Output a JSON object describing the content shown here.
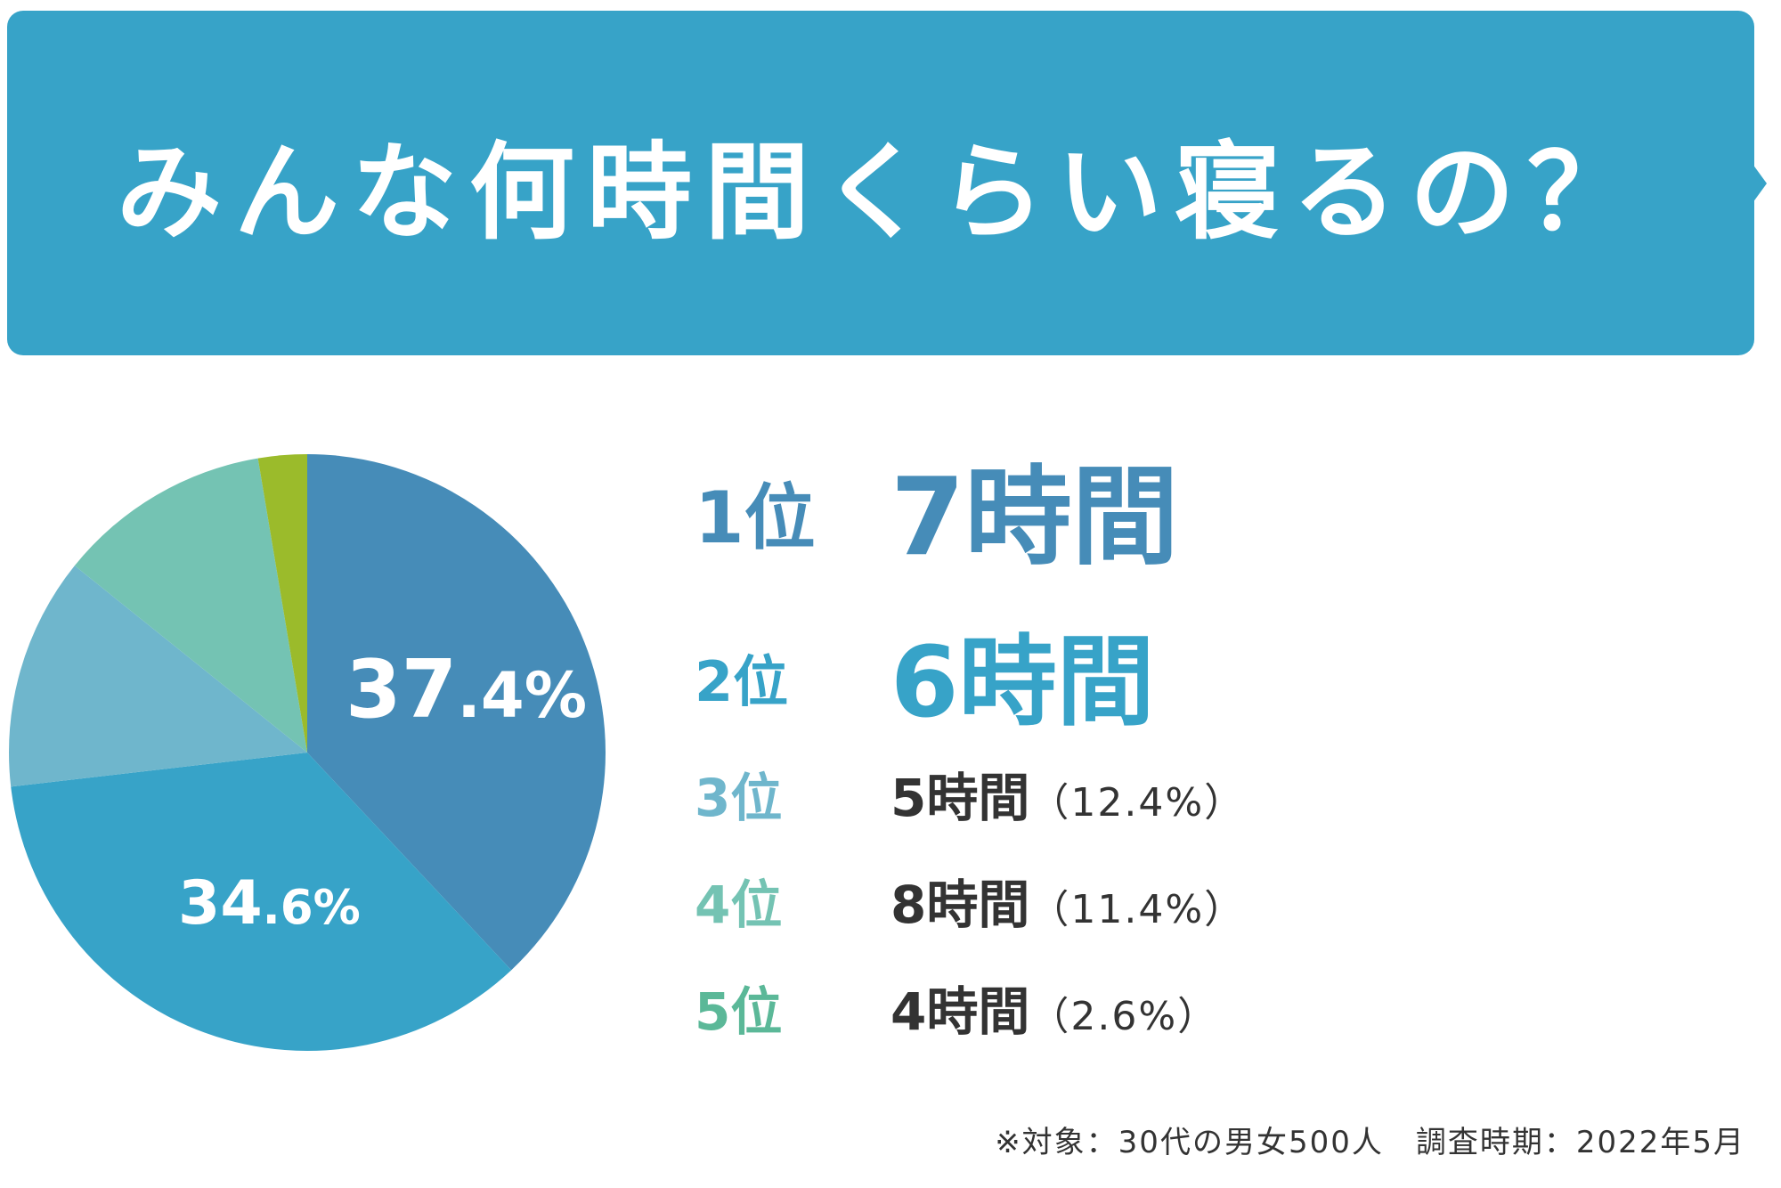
{
  "title": "みんな何時間くらい寝るの？",
  "colors": {
    "banner": "#37a3c8",
    "rank1": "#468cb8",
    "rank2": "#37a3c8",
    "rank3": "#6fb6cc",
    "rank4": "#74c3b3",
    "rank5": "#5bb898",
    "slice5": "#9bbb2b",
    "text_dark": "#333333"
  },
  "pie_labels": {
    "first": {
      "main": "37",
      "small": ".4%"
    },
    "second": {
      "main": "34",
      "small": ".6%"
    }
  },
  "ranking": [
    {
      "rank": "1位",
      "value": "7時間",
      "pct": ""
    },
    {
      "rank": "2位",
      "value": "6時間",
      "pct": ""
    },
    {
      "rank": "3位",
      "value": "5時間",
      "pct": "（12.4%）"
    },
    {
      "rank": "4位",
      "value": "8時間",
      "pct": "（11.4%）"
    },
    {
      "rank": "5位",
      "value": "4時間",
      "pct": "（2.6%）"
    }
  ],
  "footnote": "※対象：30代の男女500人　調査時期：2022年5月",
  "chart_data": {
    "type": "pie",
    "title": "みんな何時間くらい寝るの？",
    "categories": [
      "7時間",
      "6時間",
      "5時間",
      "8時間",
      "4時間"
    ],
    "values": [
      37.4,
      34.6,
      12.4,
      11.4,
      2.6
    ],
    "unit": "%",
    "start_angle": "12 o'clock",
    "direction": "clockwise"
  }
}
